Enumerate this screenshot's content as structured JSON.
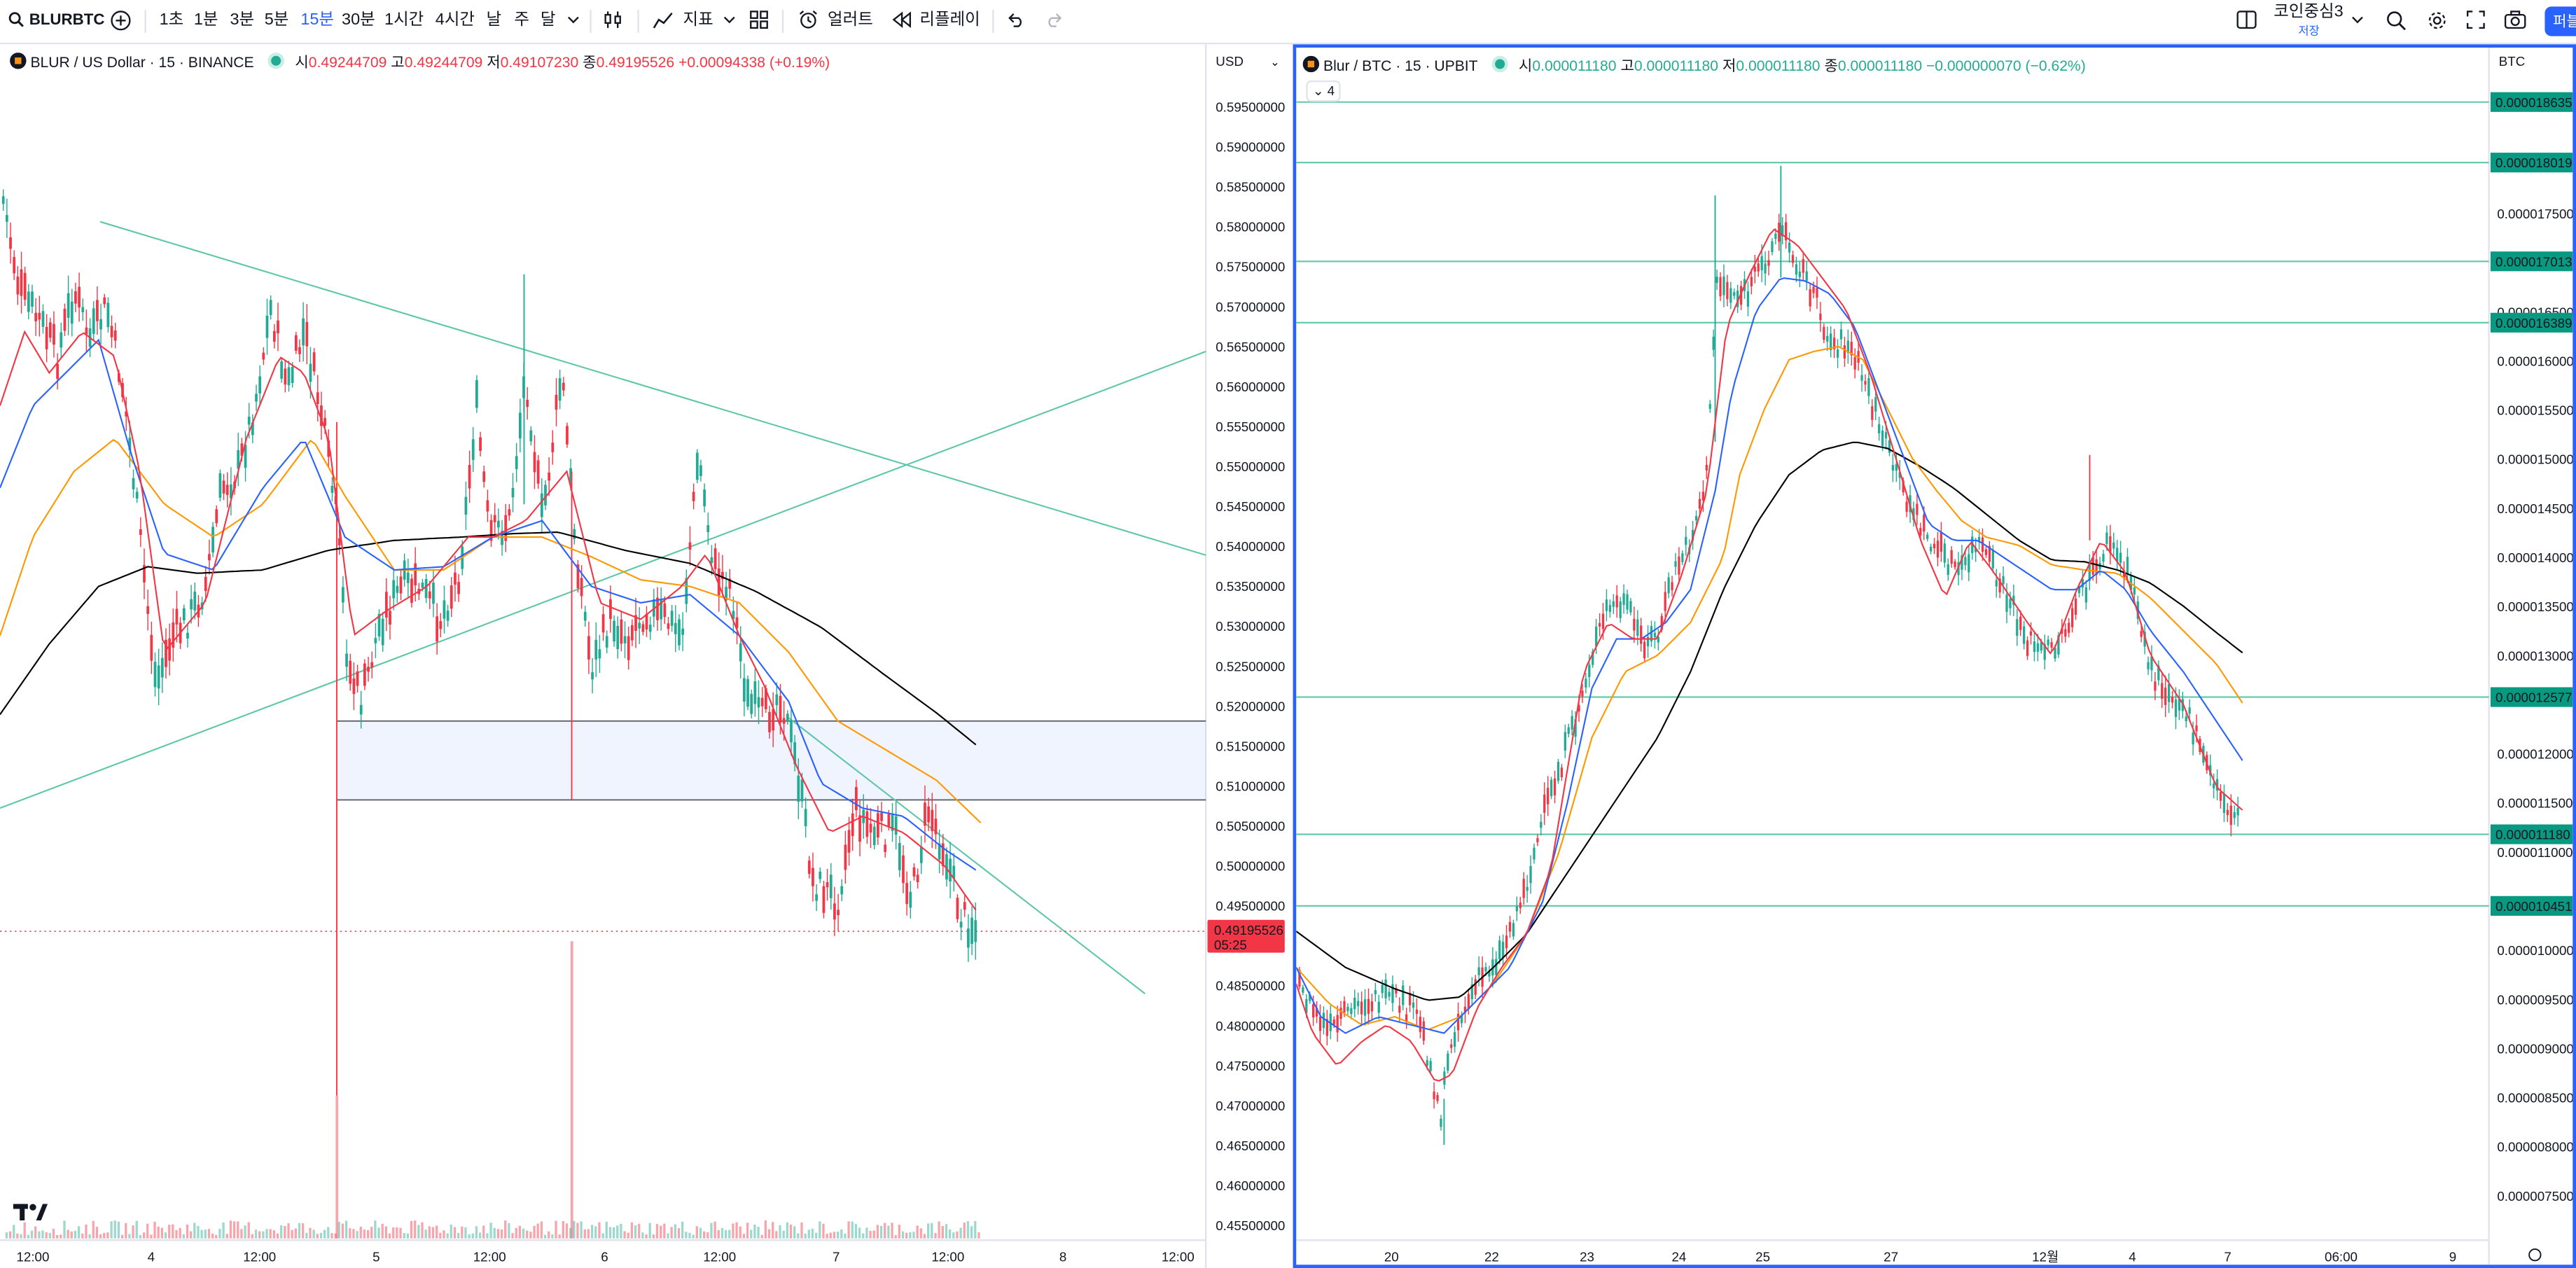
{
  "toolbar": {
    "symbol": "BLURBTC",
    "intervals": [
      "1초",
      "1분",
      "3분",
      "5분",
      "15분",
      "30분",
      "1시간",
      "4시간",
      "날",
      "주",
      "달"
    ],
    "active_interval": "15분",
    "indicators_label": "지표",
    "alerts_label": "얼러트",
    "replay_label": "리플레이",
    "layout_name": "코인중심3",
    "layout_status": "저장",
    "publish_label": "퍼블"
  },
  "left": {
    "symbol_line": "BLUR / US Dollar · 15 · BINANCE",
    "ohlc": {
      "open_label": "시",
      "open": "0.49244709",
      "high_label": "고",
      "high": "0.49244709",
      "low_label": "저",
      "low": "0.49107230",
      "close_label": "종",
      "close": "0.49195526",
      "change": "+0.00094338 (+0.19%)"
    },
    "currency": "USD",
    "price_ticks": [
      "0.59500000",
      "0.59000000",
      "0.58500000",
      "0.58000000",
      "0.57500000",
      "0.57000000",
      "0.56500000",
      "0.56000000",
      "0.55500000",
      "0.55000000",
      "0.54500000",
      "0.54000000",
      "0.53500000",
      "0.53000000",
      "0.52500000",
      "0.52000000",
      "0.51500000",
      "0.51000000",
      "0.50500000",
      "0.50000000",
      "0.49500000",
      "0.48500000",
      "0.48000000",
      "0.47500000",
      "0.47000000",
      "0.46500000",
      "0.46000000",
      "0.45500000"
    ],
    "last_price": "0.49195526",
    "countdown": "05:25",
    "time_ticks": [
      "12:00",
      "4",
      "12:00",
      "5",
      "12:00",
      "6",
      "12:00",
      "7",
      "12:00",
      "8",
      "12:00"
    ]
  },
  "right": {
    "symbol_line": "Blur / BTC · 15 · UPBIT",
    "ohlc": {
      "open_label": "시",
      "open": "0.000011180",
      "high_label": "고",
      "high": "0.000011180",
      "low_label": "저",
      "low": "0.000011180",
      "close_label": "종",
      "close": "0.000011180",
      "change": "−0.000000070 (−0.62%)"
    },
    "currency": "BTC",
    "collapse_label": "4",
    "price_ticks": [
      "0.000017500",
      "0.000016500",
      "0.000016000",
      "0.000015500",
      "0.000015000",
      "0.000014500",
      "0.000014000",
      "0.000013500",
      "0.000013000",
      "0.000012000",
      "0.000011500",
      "0.000011000",
      "0.000010000",
      "0.000009500",
      "0.000009000",
      "0.000008500",
      "0.000008000",
      "0.000007500"
    ],
    "level_labels": [
      "0.000018635",
      "0.000018019",
      "0.000017013",
      "0.000016389",
      "0.000012577",
      "0.000011180",
      "0.000010451"
    ],
    "time_ticks": [
      "20",
      "22",
      "23",
      "24",
      "25",
      "27",
      "12월",
      "4",
      "7",
      "06:00",
      "9"
    ]
  },
  "colors": {
    "up": "#22ab94",
    "down": "#f23645",
    "accent": "#2962ff",
    "ma_fast": "#f23645",
    "ma_mid": "#2962ff",
    "ma_slow": "#ff9800",
    "ma_long": "#000000",
    "trendline": "#5fc7a8"
  }
}
